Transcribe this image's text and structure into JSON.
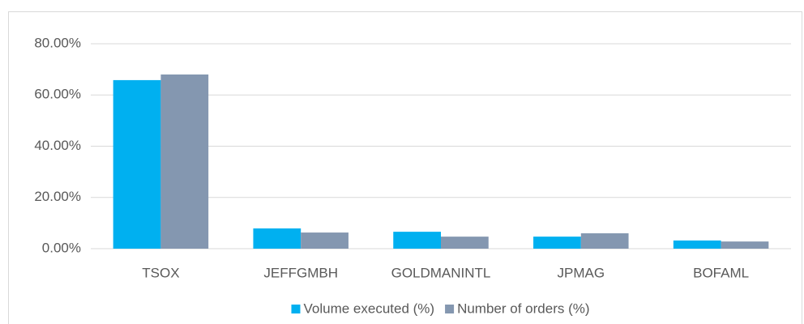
{
  "chart_data": {
    "type": "bar",
    "categories": [
      "TSOX",
      "JEFFGMBH",
      "GOLDMANINTL",
      "JPMAG",
      "BOFAML"
    ],
    "series": [
      {
        "name": "Volume executed (%)",
        "color": "#00b0f0",
        "values": [
          65.8,
          7.9,
          6.6,
          4.7,
          3.2
        ]
      },
      {
        "name": "Number of orders (%)",
        "color": "#8497b0",
        "values": [
          68.0,
          6.3,
          4.7,
          6.0,
          2.8
        ]
      }
    ],
    "ylim": [
      0,
      80
    ],
    "yticks": [
      {
        "value": 0,
        "label": "0.00%"
      },
      {
        "value": 20,
        "label": "20.00%"
      },
      {
        "value": 40,
        "label": "40.00%"
      },
      {
        "value": 60,
        "label": "60.00%"
      },
      {
        "value": 80,
        "label": "80.00%"
      }
    ],
    "grid": true,
    "legend": "bottom"
  }
}
